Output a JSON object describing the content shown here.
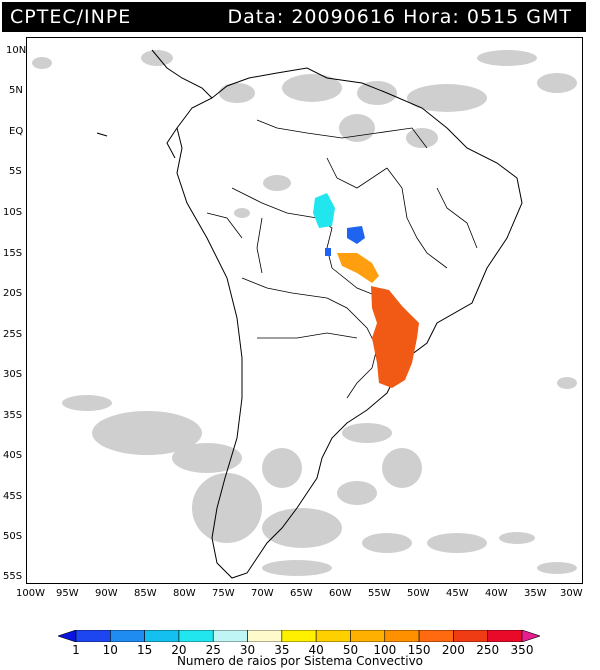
{
  "header": {
    "org": "CPTEC/INPE",
    "datetime": "Data: 20090616 Hora: 0515 GMT"
  },
  "map": {
    "lat_labels": [
      "10N",
      "5N",
      "EQ",
      "5S",
      "10S",
      "15S",
      "20S",
      "25S",
      "30S",
      "35S",
      "40S",
      "45S",
      "50S",
      "55S"
    ],
    "lon_labels": [
      "100W",
      "95W",
      "90W",
      "85W",
      "80W",
      "75W",
      "70W",
      "65W",
      "60W",
      "55W",
      "50W",
      "45W",
      "40W",
      "35W",
      "30W"
    ],
    "lat_range": [
      -56,
      12
    ],
    "lon_range": [
      -100,
      -29
    ]
  },
  "convective_systems": [
    {
      "name": "cyan-cluster",
      "color": "#22e6ee",
      "class_value": "25"
    },
    {
      "name": "blue-cluster-1",
      "color": "#1e64f0",
      "class_value": "10"
    },
    {
      "name": "blue-cluster-2",
      "color": "#1e64f0",
      "class_value": "10"
    },
    {
      "name": "orange-band",
      "color": "#ff9f0f",
      "class_value": "100"
    },
    {
      "name": "red-orange-band",
      "color": "#f05a14",
      "class_value": "200"
    }
  ],
  "colorbar": {
    "labels": [
      "1",
      "10",
      "15",
      "20",
      "25",
      "30",
      "35",
      "40",
      "50",
      "100",
      "150",
      "200",
      "250",
      "350"
    ],
    "colors": [
      "#0a14e0",
      "#1e46f0",
      "#1e8cf0",
      "#14c0f0",
      "#22e6ee",
      "#bff5f5",
      "#fffacc",
      "#fff000",
      "#ffd000",
      "#ffb000",
      "#ff9000",
      "#ff6a10",
      "#f03c14",
      "#e80a28",
      "#e81e90"
    ],
    "caption": "Numero de raios por Sistema Convectivo"
  }
}
